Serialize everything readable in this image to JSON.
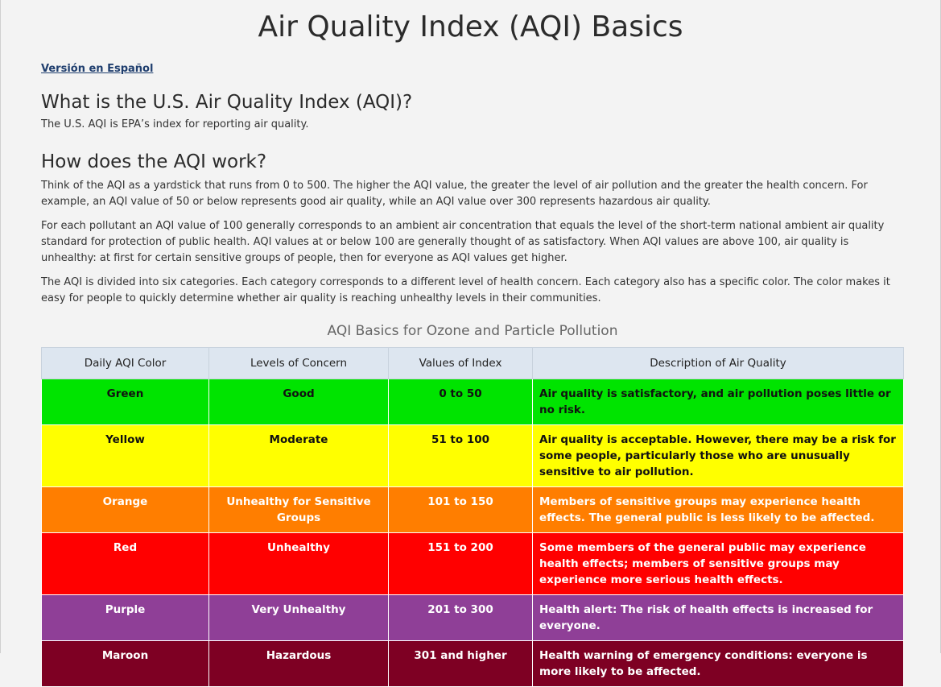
{
  "page_title": "Air Quality Index (AQI) Basics",
  "spanish_link": "Versión en Español",
  "what_heading": "What is the U.S. Air Quality Index (AQI)?",
  "what_text": "The U.S. AQI is EPA’s index for reporting air quality.",
  "how_heading": "How does the AQI work?",
  "how_p1": "Think of the AQI as a yardstick that runs from 0 to 500. The higher the AQI value, the greater the level of air pollution and the greater the health concern. For example, an AQI value of 50 or below represents good air quality, while an AQI value over 300 represents hazardous air quality.",
  "how_p2": "For each pollutant an AQI value of 100 generally corresponds to an ambient air concentration that equals the level of the short-term national ambient air quality standard for protection of public health. AQI values at or below 100 are generally thought of as satisfactory. When AQI values are above 100, air quality is unhealthy: at first for certain sensitive groups of people, then for everyone as AQI values get higher.",
  "how_p3": "The AQI is divided into six categories. Each category corresponds to a different level of health concern. Each category also has a specific color. The color makes it easy for people to quickly determine whether air quality is reaching unhealthy levels in their communities.",
  "table": {
    "caption": "AQI Basics for Ozone and Particle Pollution",
    "headers": [
      "Daily AQI Color",
      "Levels of Concern",
      "Values of Index",
      "Description of Air Quality"
    ],
    "rows": [
      {
        "color": "Green",
        "level": "Good",
        "values": "0 to 50",
        "description": "Air quality is satisfactory, and air pollution poses little or no risk.",
        "bg": "#00e400"
      },
      {
        "color": "Yellow",
        "level": "Moderate",
        "values": "51 to 100",
        "description": "Air quality is acceptable. However, there may be a risk for some people, particularly those who are unusually sensitive to air pollution.",
        "bg": "#ffff00"
      },
      {
        "color": "Orange",
        "level": "Unhealthy for Sensitive Groups",
        "values": "101 to 150",
        "description": "Members of sensitive groups may experience health effects. The general public is less likely to be affected.",
        "bg": "#ff7e00"
      },
      {
        "color": "Red",
        "level": "Unhealthy",
        "values": "151 to 200",
        "description": "Some members of the general public may experience health effects; members of sensitive groups may experience more serious health effects.",
        "bg": "#ff0000"
      },
      {
        "color": "Purple",
        "level": "Very Unhealthy",
        "values": "201 to 300",
        "description": "Health alert: The risk of health effects is increased for everyone.",
        "bg": "#8f3f97"
      },
      {
        "color": "Maroon",
        "level": "Hazardous",
        "values": "301 and higher",
        "description": "Health warning of emergency conditions: everyone is more likely to be affected.",
        "bg": "#7e0023"
      }
    ]
  }
}
